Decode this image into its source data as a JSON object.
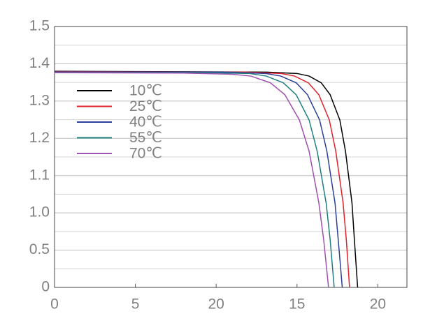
{
  "chart_data": {
    "type": "line",
    "xlim": [
      0,
      4.36
    ],
    "xticks": [
      0,
      {
        "value": 1,
        "label": "5"
      },
      {
        "value": 2,
        "label": "20"
      },
      {
        "value": 3,
        "label": "15"
      },
      {
        "value": 4,
        "label": "20"
      }
    ],
    "ylim": [
      0,
      7
    ],
    "yticks": [
      0,
      {
        "value": 1,
        "label": "0.5"
      },
      {
        "value": 2,
        "label": "1.0"
      },
      {
        "value": 3,
        "label": "1.1"
      },
      {
        "value": 4,
        "label": "1.2"
      },
      {
        "value": 5,
        "label": "1.3"
      },
      {
        "value": 6,
        "label": "1.4"
      },
      {
        "value": 7,
        "label": "1.5"
      }
    ],
    "y_minor_ticks": [
      0.5,
      1.5,
      2.5,
      3.5,
      4.5,
      5.5,
      6.5
    ],
    "grid": true,
    "legend": "upper left",
    "series": [
      {
        "name": "10℃",
        "color": "#000000",
        "x": [
          0,
          2.625,
          3.0,
          3.15,
          3.3,
          3.41,
          3.53,
          3.6,
          3.68,
          3.71,
          3.75
        ],
        "values": [
          5.8,
          5.777,
          5.74,
          5.67,
          5.49,
          5.17,
          4.49,
          3.65,
          2.27,
          1.28,
          0
        ]
      },
      {
        "name": "25℃",
        "color": "#e0202a",
        "x": [
          0,
          2.375,
          2.8,
          2.97,
          3.14,
          3.27,
          3.4,
          3.48,
          3.57,
          3.61,
          3.65
        ],
        "values": [
          5.79,
          5.777,
          5.74,
          5.67,
          5.49,
          5.17,
          4.49,
          3.65,
          2.27,
          1.28,
          0
        ]
      },
      {
        "name": "40℃",
        "color": "#2b3f9a",
        "x": [
          0,
          2.135,
          2.61,
          2.8,
          2.99,
          3.13,
          3.28,
          3.37,
          3.47,
          3.51,
          3.56
        ],
        "values": [
          5.78,
          5.777,
          5.74,
          5.67,
          5.49,
          5.17,
          4.49,
          3.65,
          2.27,
          1.28,
          0
        ]
      },
      {
        "name": "55℃",
        "color": "#1f7f80",
        "x": [
          0,
          1.885,
          2.41,
          2.62,
          2.83,
          2.99,
          3.15,
          3.25,
          3.36,
          3.41,
          3.46
        ],
        "values": [
          5.77,
          5.76,
          5.74,
          5.67,
          5.49,
          5.17,
          4.49,
          3.65,
          2.27,
          1.28,
          0
        ]
      },
      {
        "name": "70℃",
        "color": "#a050b0",
        "x": [
          0,
          1.59,
          2.19,
          2.43,
          2.67,
          2.85,
          3.03,
          3.15,
          3.27,
          3.33,
          3.39
        ],
        "values": [
          5.76,
          5.75,
          5.72,
          5.67,
          5.49,
          5.17,
          4.49,
          3.65,
          2.27,
          1.28,
          0
        ]
      }
    ]
  }
}
